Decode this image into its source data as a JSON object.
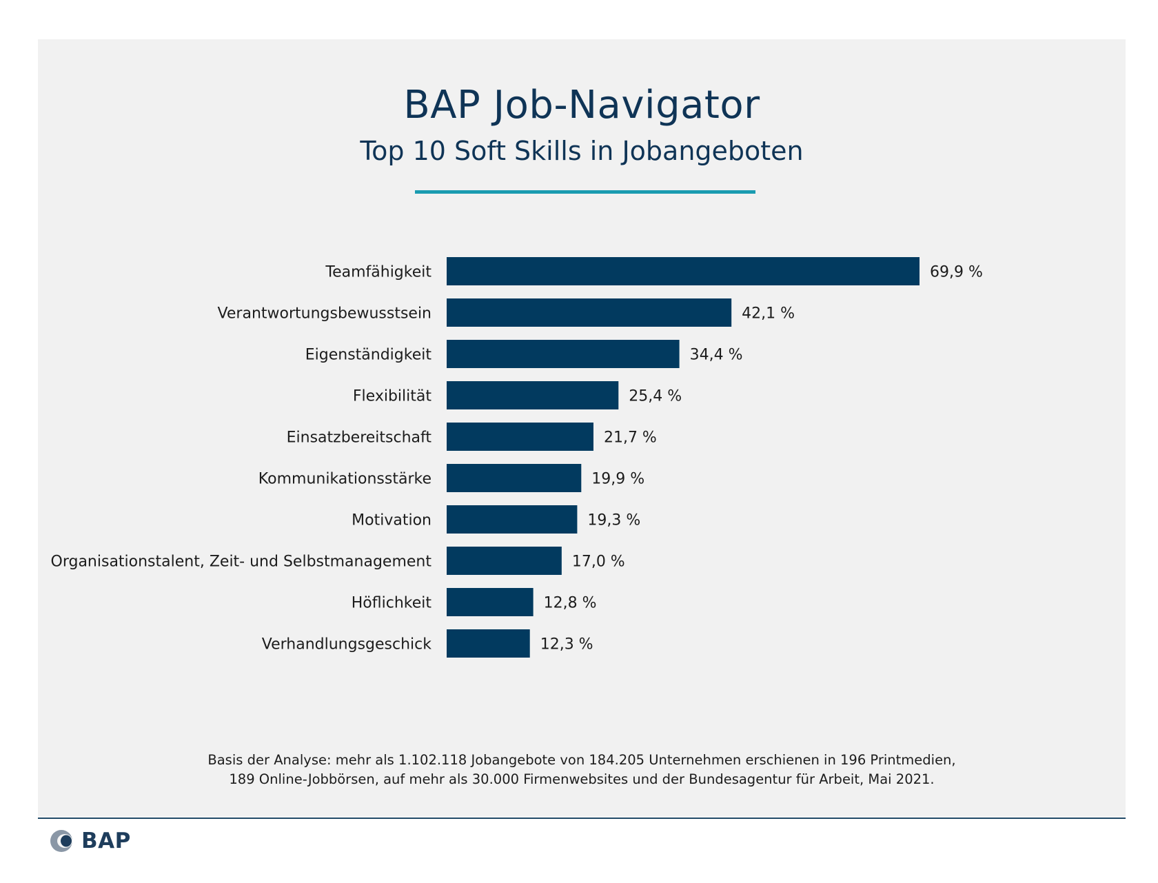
{
  "header": {
    "title": "BAP Job-Navigator",
    "subtitle": "Top 10 Soft Skills in Jobangeboten"
  },
  "colors": {
    "bar": "#023a5f",
    "accent": "#1a9bb0",
    "panel": "#f1f1f1",
    "text": "#0f3456"
  },
  "chart_data": {
    "type": "bar",
    "orientation": "horizontal",
    "categories": [
      "Teamfähigkeit",
      "Verantwortungsbewusstsein",
      "Eigenständigkeit",
      "Flexibilität",
      "Einsatzbereitschaft",
      "Kommunikationsstärke",
      "Motivation",
      "Organisationstalent, Zeit- und Selbstmanagement",
      "Höflichkeit",
      "Verhandlungsgeschick"
    ],
    "values": [
      69.9,
      42.1,
      34.4,
      25.4,
      21.7,
      19.9,
      19.3,
      17.0,
      12.8,
      12.3
    ],
    "value_labels": [
      "69,9 %",
      "42,1 %",
      "34,4 %",
      "25,4 %",
      "21,7 %",
      "19,9 %",
      "19,3 %",
      "17,0 %",
      "12,8 %",
      "12,3 %"
    ],
    "title": "",
    "xlabel": "",
    "ylabel": "",
    "xlim": [
      0,
      69.9
    ],
    "grid": false,
    "legend": "none"
  },
  "footnote": {
    "line1": "Basis der Analyse: mehr als 1.102.118 Jobangebote von 184.205 Unternehmen erschienen in 196 Printmedien,",
    "line2": "189 Online-Jobbörsen, auf mehr als 30.000 Firmenwebsites und der Bundesagentur für Arbeit, Mai 2021."
  },
  "logo": {
    "text": "BAP",
    "icon": "bap-logo-icon"
  }
}
